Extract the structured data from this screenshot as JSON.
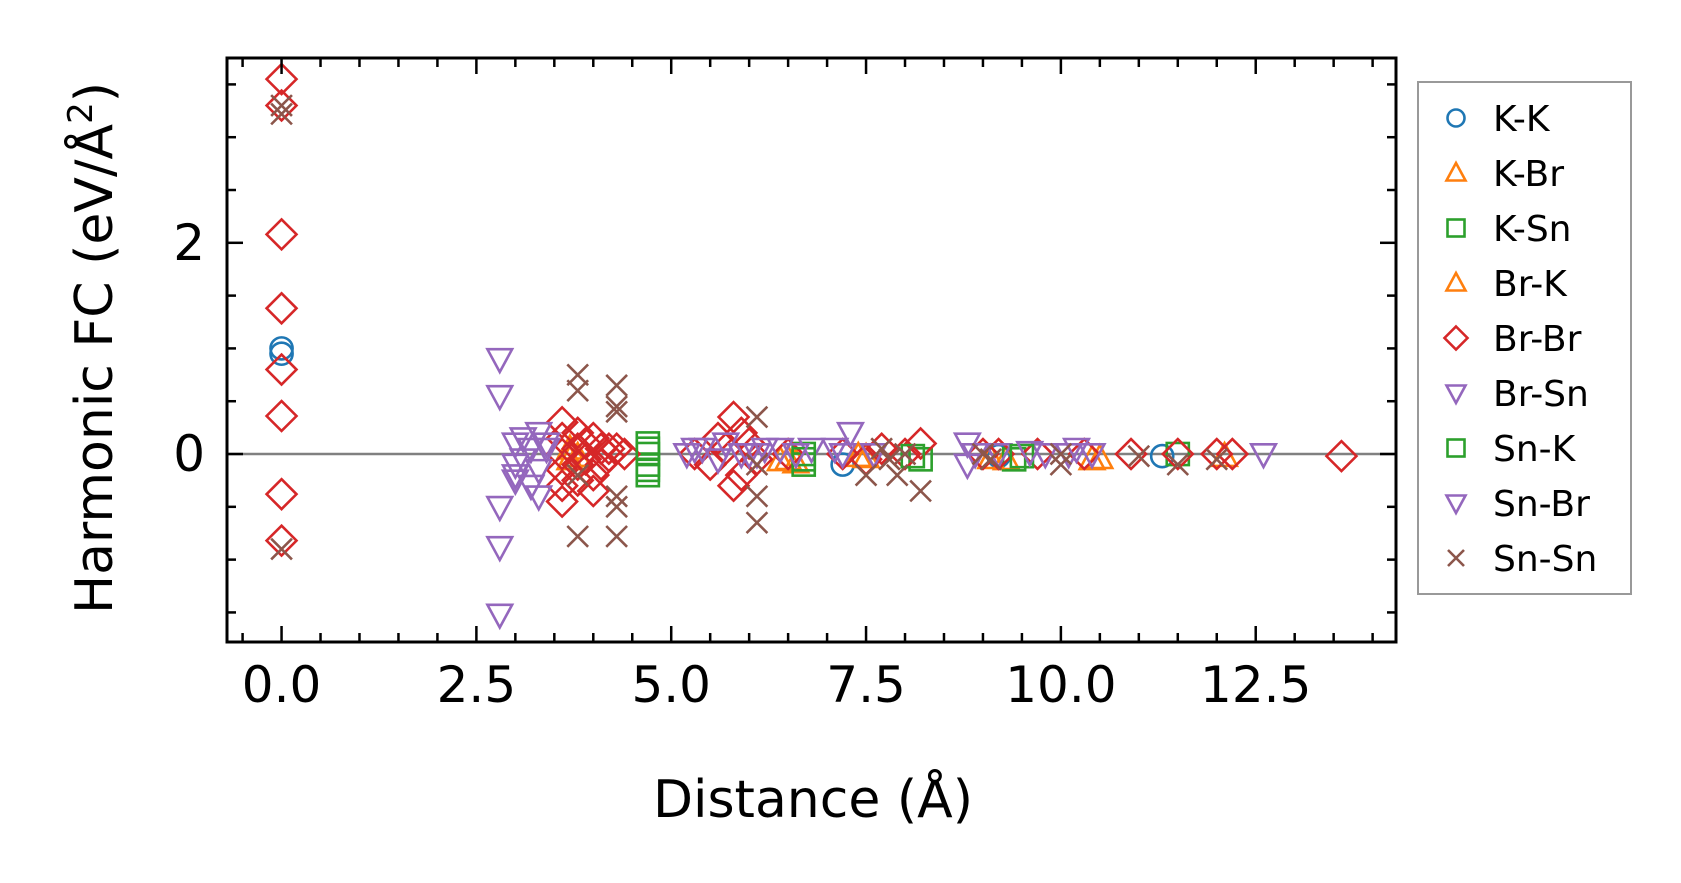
{
  "chart_data": {
    "type": "scatter",
    "title": "",
    "xlabel": "Distance (Å)",
    "ylabel": "Harmonic FC (eV/Å",
    "ylabel_sup": "2",
    "ylabel_close": ")",
    "xlim": [
      -0.7,
      14.3
    ],
    "ylim": [
      -1.78,
      3.75
    ],
    "xticks": [
      0.0,
      2.5,
      5.0,
      7.5,
      10.0,
      12.5
    ],
    "xtick_labels": [
      "0.0",
      "2.5",
      "5.0",
      "7.5",
      "10.0",
      "12.5"
    ],
    "yticks": [
      0,
      2
    ],
    "ytick_labels": [
      "0",
      "2"
    ],
    "zero_line": true,
    "legend_position": "right",
    "series": [
      {
        "name": "K-K",
        "marker": "circle",
        "color": "#1f77b4",
        "points": [
          [
            0,
            1.0
          ],
          [
            0,
            0.95
          ],
          [
            7.2,
            -0.1
          ],
          [
            9.2,
            -0.02
          ],
          [
            11.3,
            -0.02
          ]
        ]
      },
      {
        "name": "K-Br",
        "marker": "triangle-up",
        "color": "#ff7f0e",
        "points": [
          [
            3.7,
            0.05
          ],
          [
            3.7,
            -0.05
          ],
          [
            6.5,
            -0.05
          ],
          [
            6.6,
            -0.08
          ],
          [
            7.4,
            -0.02
          ],
          [
            9.3,
            -0.05
          ],
          [
            10.4,
            -0.05
          ],
          [
            12.1,
            -0.02
          ]
        ]
      },
      {
        "name": "K-Sn",
        "marker": "square",
        "color": "#2ca02c",
        "points": [
          [
            4.7,
            0.1
          ],
          [
            4.7,
            0.0
          ],
          [
            4.7,
            -0.1
          ],
          [
            4.7,
            -0.2
          ],
          [
            6.7,
            -0.1
          ],
          [
            6.7,
            0.0
          ],
          [
            8.2,
            -0.05
          ],
          [
            9.4,
            -0.05
          ],
          [
            11.5,
            0.0
          ]
        ]
      },
      {
        "name": "Br-K",
        "marker": "triangle-up",
        "color": "#ff7f0e",
        "points": [
          [
            3.8,
            -0.02
          ],
          [
            6.4,
            -0.06
          ],
          [
            7.5,
            -0.03
          ],
          [
            9.1,
            -0.04
          ],
          [
            10.5,
            -0.04
          ]
        ]
      },
      {
        "name": "Br-Br",
        "marker": "diamond",
        "color": "#d62728",
        "points": [
          [
            0,
            3.55
          ],
          [
            0,
            3.3
          ],
          [
            0,
            2.08
          ],
          [
            0,
            1.38
          ],
          [
            0,
            0.8
          ],
          [
            0,
            0.36
          ],
          [
            0,
            -0.38
          ],
          [
            0,
            -0.82
          ],
          [
            3.6,
            0.3
          ],
          [
            3.6,
            0.15
          ],
          [
            3.6,
            0.0
          ],
          [
            3.6,
            -0.15
          ],
          [
            3.6,
            -0.3
          ],
          [
            3.6,
            -0.45
          ],
          [
            3.8,
            0.2
          ],
          [
            3.8,
            0.05
          ],
          [
            3.8,
            -0.1
          ],
          [
            3.8,
            -0.25
          ],
          [
            3.9,
            0.1
          ],
          [
            3.9,
            -0.05
          ],
          [
            4.0,
            0.15
          ],
          [
            4.0,
            -0.2
          ],
          [
            4.0,
            -0.35
          ],
          [
            4.1,
            0.05
          ],
          [
            4.1,
            -0.1
          ],
          [
            4.2,
            0.05
          ],
          [
            4.2,
            -0.02
          ],
          [
            4.3,
            0.05
          ],
          [
            4.4,
            0.0
          ],
          [
            5.3,
            0.0
          ],
          [
            5.5,
            -0.1
          ],
          [
            5.6,
            0.15
          ],
          [
            5.7,
            0.05
          ],
          [
            5.8,
            0.35
          ],
          [
            5.8,
            -0.3
          ],
          [
            5.9,
            0.2
          ],
          [
            5.9,
            -0.2
          ],
          [
            6.0,
            0.1
          ],
          [
            6.1,
            -0.05
          ],
          [
            6.5,
            0.0
          ],
          [
            7.2,
            0.0
          ],
          [
            7.5,
            -0.05
          ],
          [
            7.7,
            0.05
          ],
          [
            8.0,
            0.0
          ],
          [
            8.2,
            0.1
          ],
          [
            9.0,
            0.0
          ],
          [
            9.2,
            0.0
          ],
          [
            9.7,
            0.0
          ],
          [
            10.3,
            0.0
          ],
          [
            10.9,
            0.0
          ],
          [
            11.5,
            0.0
          ],
          [
            12.0,
            0.0
          ],
          [
            12.2,
            0.0
          ],
          [
            13.6,
            -0.02
          ]
        ]
      },
      {
        "name": "Br-Sn",
        "marker": "triangle-down",
        "color": "#9467bd",
        "points": [
          [
            2.8,
            0.9
          ],
          [
            2.8,
            0.55
          ],
          [
            2.8,
            -0.5
          ],
          [
            2.8,
            -0.88
          ],
          [
            2.8,
            -1.52
          ],
          [
            3.0,
            0.1
          ],
          [
            3.0,
            -0.1
          ],
          [
            3.0,
            -0.2
          ],
          [
            3.1,
            0.15
          ],
          [
            3.1,
            -0.05
          ],
          [
            3.2,
            0.05
          ],
          [
            3.3,
            0.2
          ],
          [
            3.3,
            -0.15
          ],
          [
            3.3,
            -0.4
          ],
          [
            3.4,
            0.1
          ],
          [
            5.2,
            0.0
          ],
          [
            5.4,
            0.05
          ],
          [
            5.6,
            -0.05
          ],
          [
            5.7,
            0.1
          ],
          [
            6.0,
            0.0
          ],
          [
            6.2,
            0.05
          ],
          [
            6.4,
            0.05
          ],
          [
            6.8,
            0.05
          ],
          [
            7.1,
            0.05
          ],
          [
            7.3,
            0.2
          ],
          [
            7.6,
            0.0
          ],
          [
            8.8,
            0.1
          ],
          [
            8.8,
            -0.1
          ],
          [
            9.2,
            0.0
          ],
          [
            9.8,
            0.0
          ],
          [
            10.2,
            0.05
          ],
          [
            10.4,
            0.0
          ],
          [
            12.6,
            0.0
          ]
        ]
      },
      {
        "name": "Sn-K",
        "marker": "square",
        "color": "#2ca02c",
        "points": [
          [
            4.7,
            0.05
          ],
          [
            4.7,
            -0.15
          ],
          [
            6.7,
            -0.05
          ],
          [
            8.1,
            -0.02
          ],
          [
            9.5,
            -0.02
          ]
        ]
      },
      {
        "name": "Sn-Br",
        "marker": "triangle-down",
        "color": "#9467bd",
        "points": [
          [
            3.0,
            -0.25
          ],
          [
            3.2,
            -0.3
          ],
          [
            3.4,
            0.05
          ],
          [
            5.3,
            0.05
          ],
          [
            5.9,
            0.0
          ],
          [
            6.1,
            0.0
          ],
          [
            6.6,
            0.0
          ],
          [
            7.2,
            0.0
          ],
          [
            8.9,
            0.0
          ],
          [
            9.6,
            0.02
          ],
          [
            10.1,
            0.0
          ]
        ]
      },
      {
        "name": "Sn-Sn",
        "marker": "x",
        "color": "#8c564b",
        "points": [
          [
            0,
            3.3
          ],
          [
            0,
            3.22
          ],
          [
            0,
            -0.9
          ],
          [
            3.8,
            0.75
          ],
          [
            3.8,
            0.6
          ],
          [
            3.8,
            -0.2
          ],
          [
            3.8,
            -0.78
          ],
          [
            4.3,
            0.65
          ],
          [
            4.3,
            0.45
          ],
          [
            4.3,
            0.4
          ],
          [
            4.3,
            -0.4
          ],
          [
            4.3,
            -0.5
          ],
          [
            4.3,
            -0.78
          ],
          [
            6.1,
            0.35
          ],
          [
            6.1,
            -0.1
          ],
          [
            6.1,
            -0.4
          ],
          [
            6.1,
            -0.65
          ],
          [
            7.5,
            -0.2
          ],
          [
            7.7,
            0.05
          ],
          [
            7.8,
            -0.05
          ],
          [
            7.9,
            -0.2
          ],
          [
            8.0,
            0.0
          ],
          [
            8.2,
            -0.35
          ],
          [
            9.0,
            0.0
          ],
          [
            9.1,
            -0.05
          ],
          [
            10.0,
            0.0
          ],
          [
            10.0,
            -0.1
          ],
          [
            11.0,
            -0.02
          ],
          [
            11.5,
            -0.1
          ],
          [
            12.0,
            -0.05
          ]
        ]
      }
    ]
  }
}
